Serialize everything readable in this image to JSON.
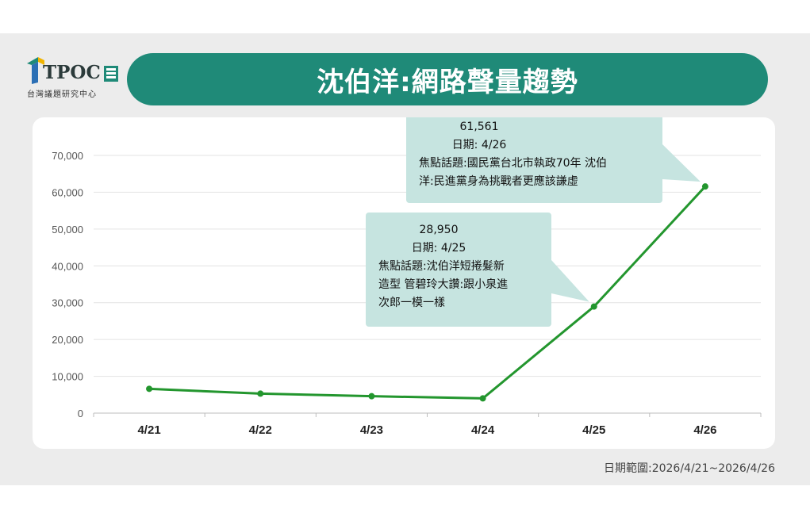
{
  "header": {
    "logo_text": "TPOC",
    "logo_subtitle": "台灣議題研究中心",
    "title": "沈伯洋:網路聲量趨勢"
  },
  "footer": {
    "date_range": "日期範圍:2026/4/21~2026/4/26"
  },
  "colors": {
    "brand": "#1f8a78",
    "line": "#23962e",
    "tooltip_bg": "#c6e4e0"
  },
  "chart_data": {
    "type": "line",
    "categories": [
      "4/21",
      "4/22",
      "4/23",
      "4/24",
      "4/25",
      "4/26"
    ],
    "series": [
      {
        "values": [
          6600,
          5300,
          4600,
          4000,
          28950,
          61561
        ]
      }
    ],
    "ylim": [
      0,
      70000
    ],
    "yticks": [
      0,
      10000,
      20000,
      30000,
      40000,
      50000,
      60000,
      70000
    ],
    "ytick_labels": [
      "0",
      "10,000",
      "20,000",
      "30,000",
      "40,000",
      "50,000",
      "60,000",
      "70,000"
    ],
    "grid": true,
    "annotations": [
      {
        "point_index": 4,
        "lines": [
          "28,950",
          "日期: 4/25",
          "焦點話題:沈伯洋短捲髮新",
          "造型 管碧玲大讚:跟小泉進",
          "次郎一模一樣"
        ]
      },
      {
        "point_index": 5,
        "lines": [
          "61,561",
          "日期: 4/26",
          "焦點話題:國民黨台北市執政70年  沈伯",
          "洋:民進黨身為挑戰者更應該謙虛"
        ]
      }
    ]
  }
}
